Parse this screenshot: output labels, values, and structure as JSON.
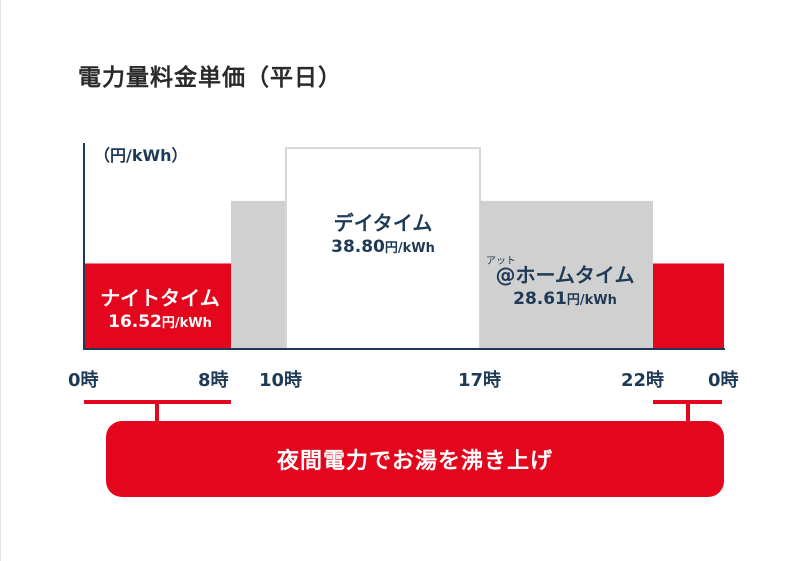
{
  "title": "電力量料金単価（平日）",
  "chart_data": {
    "type": "bar",
    "title": "電力量料金単価（平日）",
    "ylabel": "（円/kWh）",
    "unit": "円/kWh",
    "x_ticks": [
      "0時",
      "8時",
      "10時",
      "17時",
      "22時",
      "0時"
    ],
    "ylim": [
      0,
      45
    ],
    "segments": [
      {
        "name": "ナイトタイム",
        "start": 0,
        "end": 8,
        "value": 16.52,
        "price_label": "16.52",
        "color": "#e4061d",
        "text_color": "#ffffff"
      },
      {
        "name": "@ホームタイム",
        "start": 8,
        "end": 10,
        "value": 28.61,
        "color": "#d0d0d0"
      },
      {
        "name": "デイタイム",
        "start": 10,
        "end": 17,
        "value": 38.8,
        "price_label": "38.80",
        "color": "#ffffff",
        "border": "#d6d6d6",
        "text_color": "#1f3a56"
      },
      {
        "name": "@ホームタイム",
        "start": 17,
        "end": 22,
        "value": 28.61,
        "price_label": "28.61",
        "ruby": "アット",
        "color": "#d0d0d0",
        "text_color": "#1f3a56"
      },
      {
        "name": "ナイトタイム",
        "start": 22,
        "end": 24,
        "value": 16.52,
        "color": "#e4061d"
      }
    ],
    "grid": false,
    "legend": "none"
  },
  "unit_suffix": "円/kWh",
  "banner": {
    "text": "夜間電力でお湯を沸き上げ"
  },
  "colors": {
    "accent": "#e4061d",
    "navy": "#1f3a56",
    "gray": "#d0d0d0"
  }
}
